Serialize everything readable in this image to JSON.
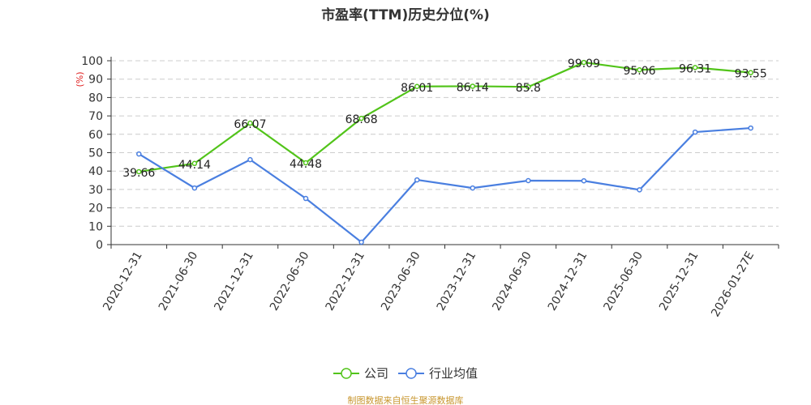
{
  "title": "市盈率(TTM)历史分位(%)",
  "source": "制图数据来自恒生聚源数据库",
  "chart_data": {
    "type": "line",
    "title": "市盈率(TTM)历史分位(%)",
    "ylabel": "(%)",
    "ylim": [
      0,
      100
    ],
    "yticks": [
      0,
      10,
      20,
      30,
      40,
      50,
      60,
      70,
      80,
      90,
      100
    ],
    "grid": true,
    "legend_position": "bottom",
    "categories": [
      "2020-12-31",
      "2021-06-30",
      "2021-12-31",
      "2022-06-30",
      "2022-12-31",
      "2023-06-30",
      "2023-12-31",
      "2024-06-30",
      "2024-12-31",
      "2025-06-30",
      "2025-12-31",
      "2026-01-27E"
    ],
    "series": [
      {
        "name": "公司",
        "color": "#52c41a",
        "labels": true,
        "values": [
          39.66,
          44.14,
          66.07,
          44.48,
          68.68,
          86.01,
          86.14,
          85.8,
          99.09,
          95.06,
          96.31,
          93.55
        ]
      },
      {
        "name": "行业均值",
        "color": "#4a7fe0",
        "labels": false,
        "values": [
          49.3,
          30.8,
          46.2,
          25.1,
          1.3,
          35.2,
          30.8,
          34.8,
          34.7,
          29.8,
          61.2,
          63.4
        ]
      }
    ]
  }
}
